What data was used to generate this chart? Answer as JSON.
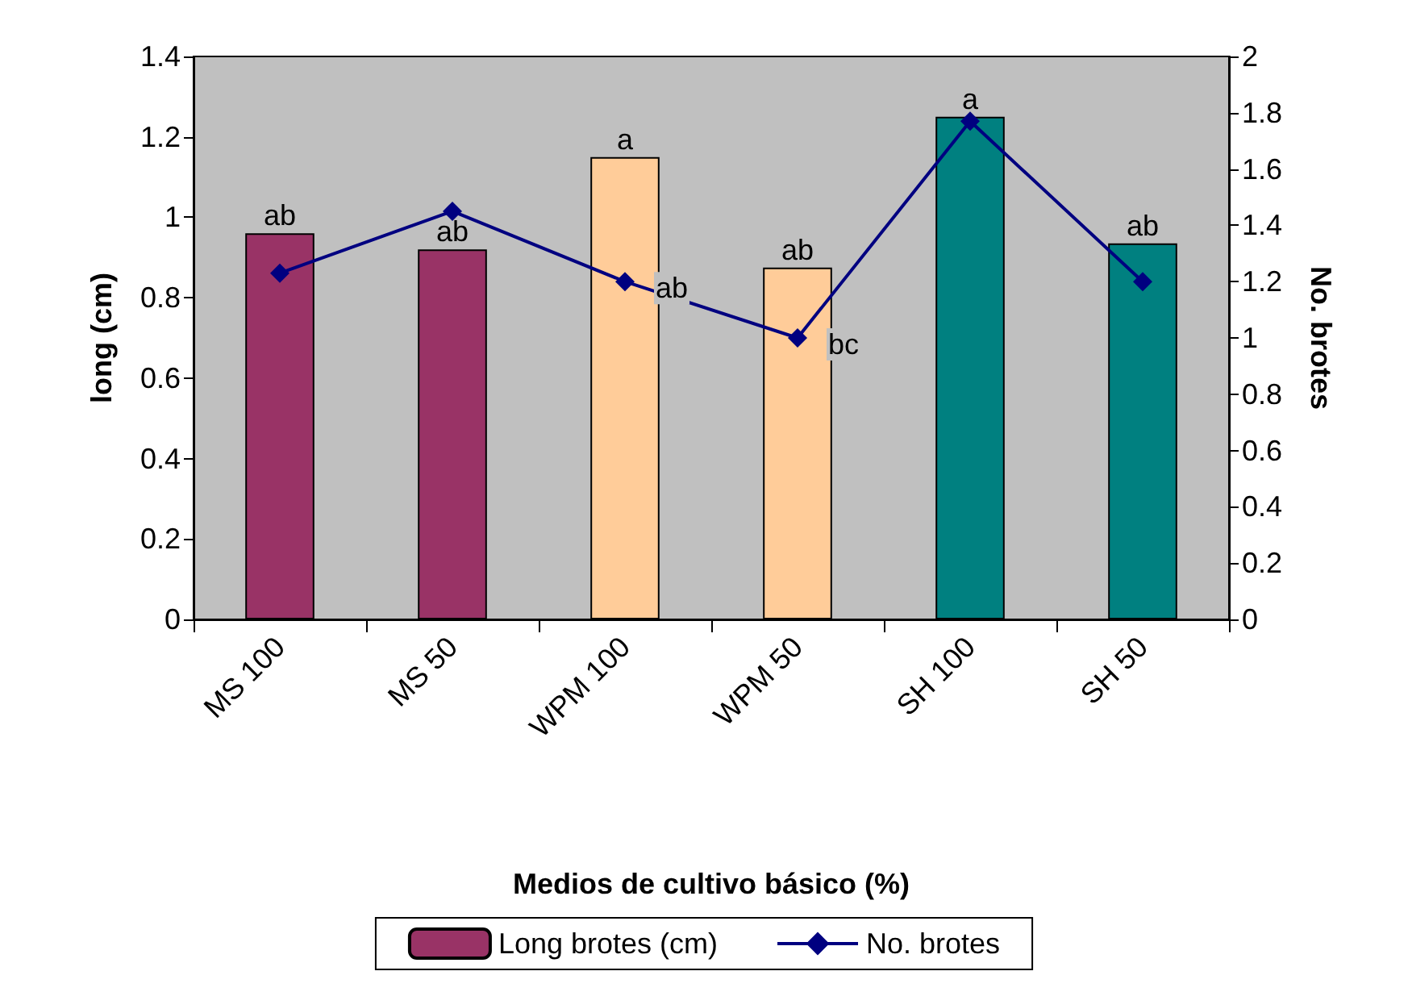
{
  "chart_data": {
    "type": "bar",
    "xlabel": "Medios de cultivo básico (%)",
    "ylabel": "long (cm)",
    "y2label": "No. brotes",
    "categories": [
      "MS 100",
      "MS 50",
      "WPM 100",
      "WPM 50",
      "SH 100",
      "SH 50"
    ],
    "series": [
      {
        "name": "Long brotes (cm)",
        "color": "#993366",
        "colors": [
          "#993366",
          "#993366",
          "#ffcc99",
          "#ffcc99",
          "#008080",
          "#008080"
        ],
        "values": [
          0.96,
          0.92,
          1.15,
          0.875,
          1.25,
          0.935
        ],
        "value_labels": [
          "ab",
          "ab",
          "a",
          "ab",
          "a",
          "ab"
        ]
      },
      {
        "name": "No. brotes",
        "type": "line",
        "axis": "y2",
        "color": "#000080",
        "values": [
          1.23,
          1.45,
          1.2,
          1.0,
          1.77,
          1.2
        ],
        "value_labels": [
          null,
          null,
          "ab",
          "bc",
          null,
          null
        ]
      }
    ],
    "ylim": [
      0,
      1.4
    ],
    "yticks": [
      0,
      0.2,
      0.4,
      0.6,
      0.8,
      1,
      1.2,
      1.4
    ],
    "y2lim": [
      0,
      2
    ],
    "y2ticks": [
      0,
      0.2,
      0.4,
      0.6,
      0.8,
      1,
      1.2,
      1.4,
      1.6,
      1.8,
      2
    ],
    "grid": false,
    "legend": "bottom",
    "marker": "diamond",
    "line_style": "solid"
  }
}
